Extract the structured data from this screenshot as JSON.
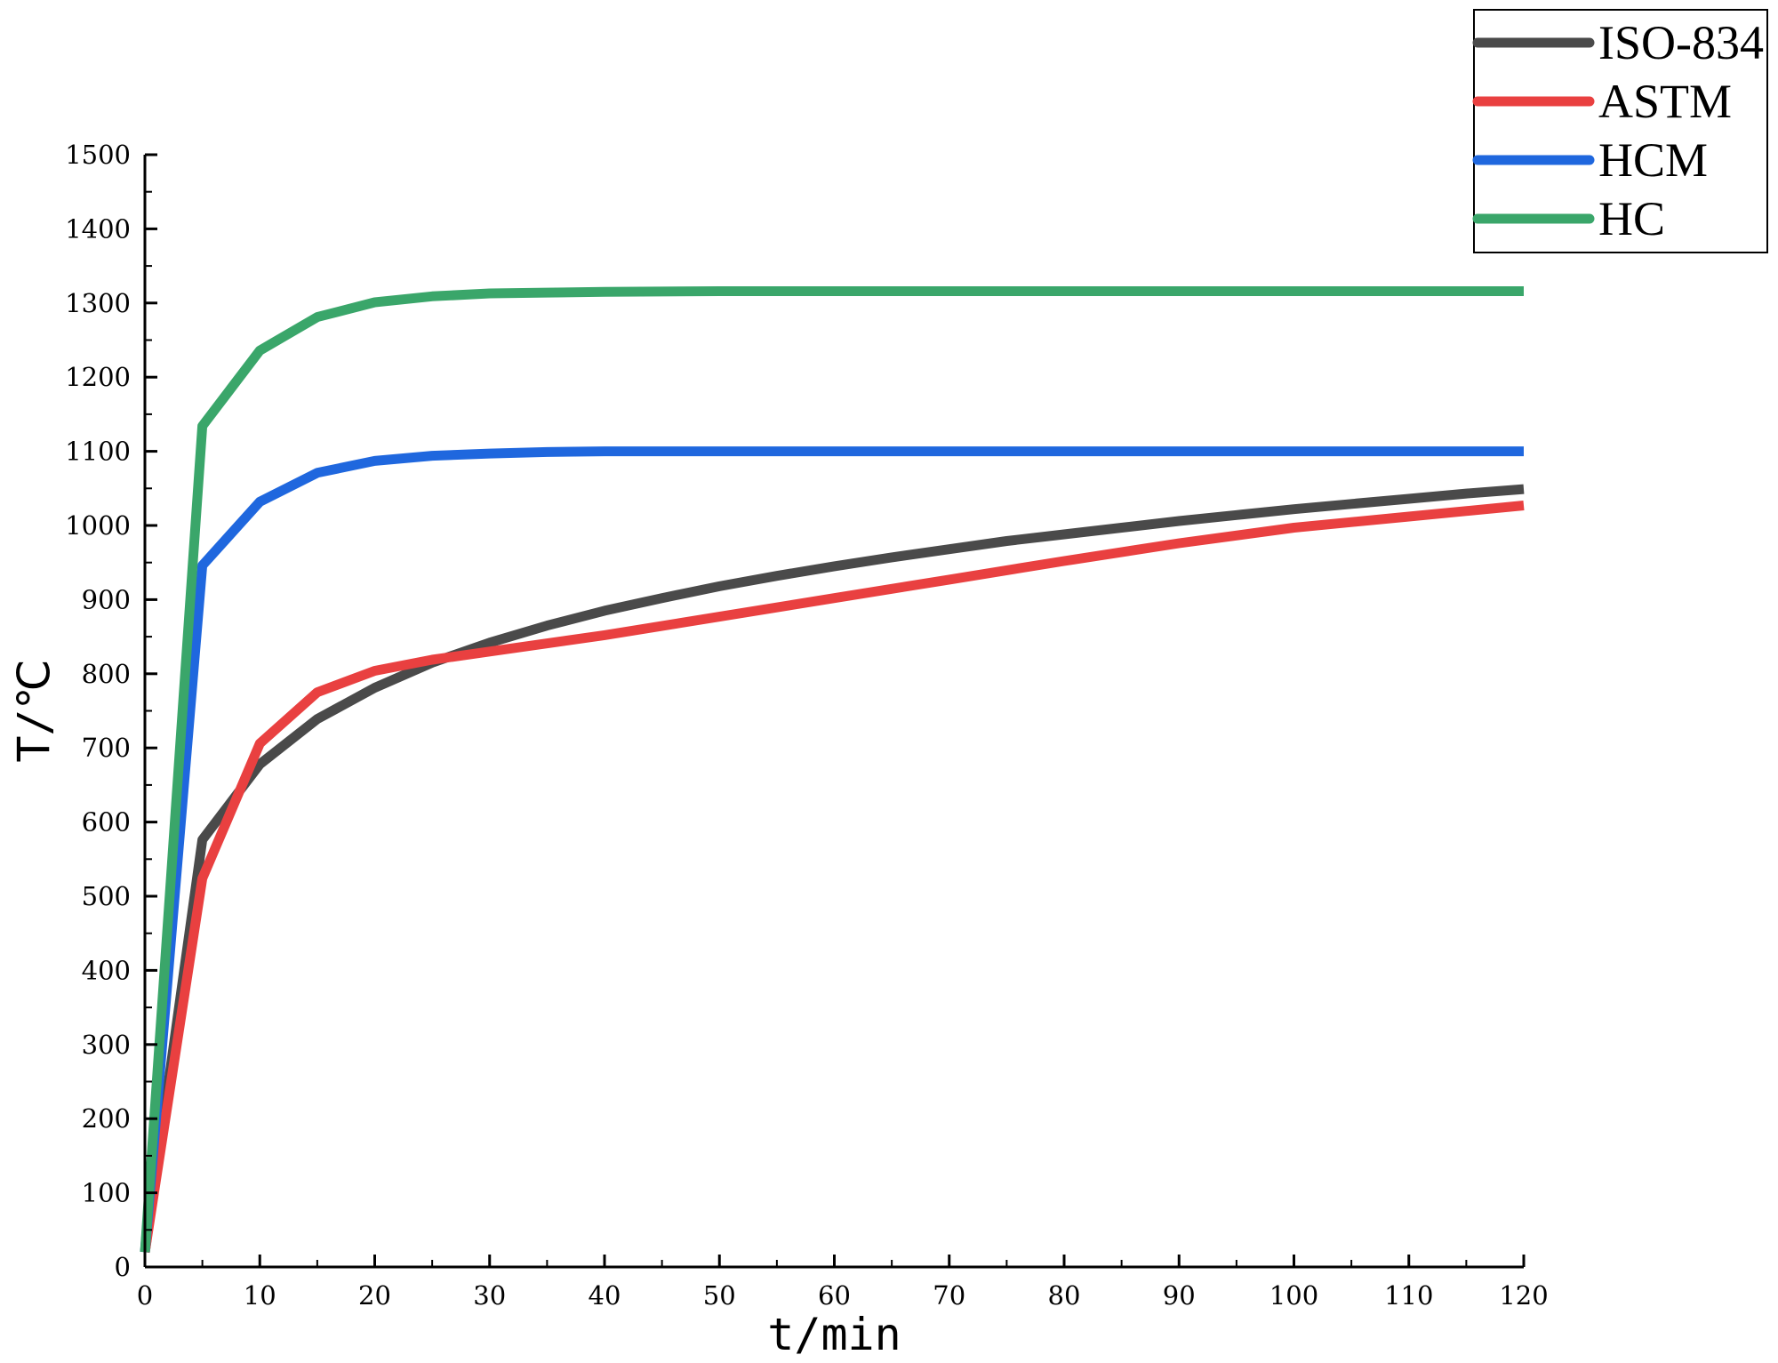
{
  "chart_data": {
    "type": "line",
    "xlabel": "t/min",
    "ylabel": "T/℃",
    "xlim": [
      0,
      120
    ],
    "ylim": [
      0,
      1500
    ],
    "xticks": [
      0,
      10,
      20,
      30,
      40,
      50,
      60,
      70,
      80,
      90,
      100,
      110,
      120
    ],
    "yticks": [
      0,
      100,
      200,
      300,
      400,
      500,
      600,
      700,
      800,
      900,
      1000,
      1100,
      1200,
      1300,
      1400,
      1500
    ],
    "grid": false,
    "legend_position": "top-right",
    "series": [
      {
        "name": "ISO-834",
        "color": "#4a4a4a",
        "x": [
          0,
          5,
          10,
          15,
          20,
          25,
          30,
          35,
          40,
          45,
          50,
          55,
          60,
          65,
          70,
          75,
          80,
          85,
          90,
          95,
          100,
          105,
          110,
          115,
          120
        ],
        "y": [
          20,
          576,
          678,
          739,
          781,
          815,
          842,
          865,
          885,
          902,
          918,
          932,
          945,
          957,
          968,
          979,
          988,
          997,
          1006,
          1014,
          1022,
          1029,
          1036,
          1043,
          1049
        ]
      },
      {
        "name": "ASTM",
        "color": "#e94040",
        "x": [
          0,
          5,
          10,
          15,
          20,
          25,
          30,
          40,
          50,
          60,
          70,
          80,
          90,
          100,
          110,
          120
        ],
        "y": [
          20,
          524,
          706,
          775,
          804,
          819,
          830,
          852,
          877,
          902,
          927,
          952,
          976,
          997,
          1012,
          1027
        ]
      },
      {
        "name": "HCM",
        "color": "#1f67de",
        "x": [
          0,
          5,
          10,
          15,
          20,
          25,
          30,
          35,
          40,
          50,
          60,
          80,
          100,
          120
        ],
        "y": [
          20,
          946,
          1032,
          1071,
          1087,
          1094,
          1097,
          1099,
          1100,
          1100,
          1100,
          1100,
          1100,
          1100
        ]
      },
      {
        "name": "HC",
        "color": "#3aa66a",
        "x": [
          0,
          5,
          10,
          15,
          20,
          25,
          30,
          35,
          40,
          50,
          60,
          80,
          100,
          120
        ],
        "y": [
          20,
          1134,
          1236,
          1281,
          1301,
          1309,
          1313,
          1314,
          1315,
          1316,
          1316,
          1316,
          1316,
          1316
        ]
      }
    ]
  }
}
